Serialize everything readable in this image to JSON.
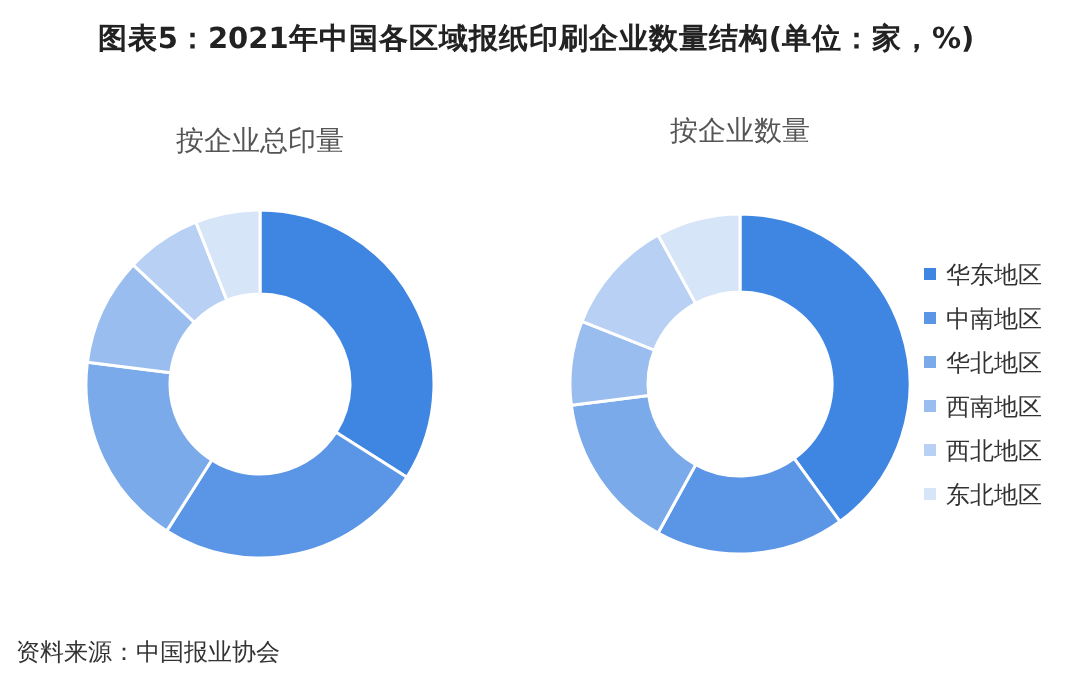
{
  "chart_data": [
    {
      "type": "donut",
      "title": "图表5：2021年中国各区域报纸印刷企业数量结构(单位：家，%)",
      "subtitle": "按企业总印量",
      "categories": [
        null,
        null,
        null,
        null,
        null,
        null
      ],
      "values": [
        34,
        25,
        18,
        10,
        7,
        6
      ],
      "colors": [
        "#3f86e2",
        "#5a95e6",
        "#7aaae9",
        "#99bdee",
        "#b7d0f3",
        "#d6e5f8"
      ],
      "legend": false,
      "annotations": [
        "资料来源：中国报业协会"
      ]
    },
    {
      "type": "donut",
      "title": "按企业数量",
      "categories": [
        "华东地区",
        "中南地区",
        "华北地区",
        "西南地区",
        "西北地区",
        "东北地区"
      ],
      "values": [
        40,
        18,
        15,
        8,
        11,
        8
      ],
      "colors": [
        "#3f86e2",
        "#5a95e6",
        "#7aaae9",
        "#99bdee",
        "#b7d0f3",
        "#d6e5f8"
      ],
      "legend": "right"
    }
  ]
}
